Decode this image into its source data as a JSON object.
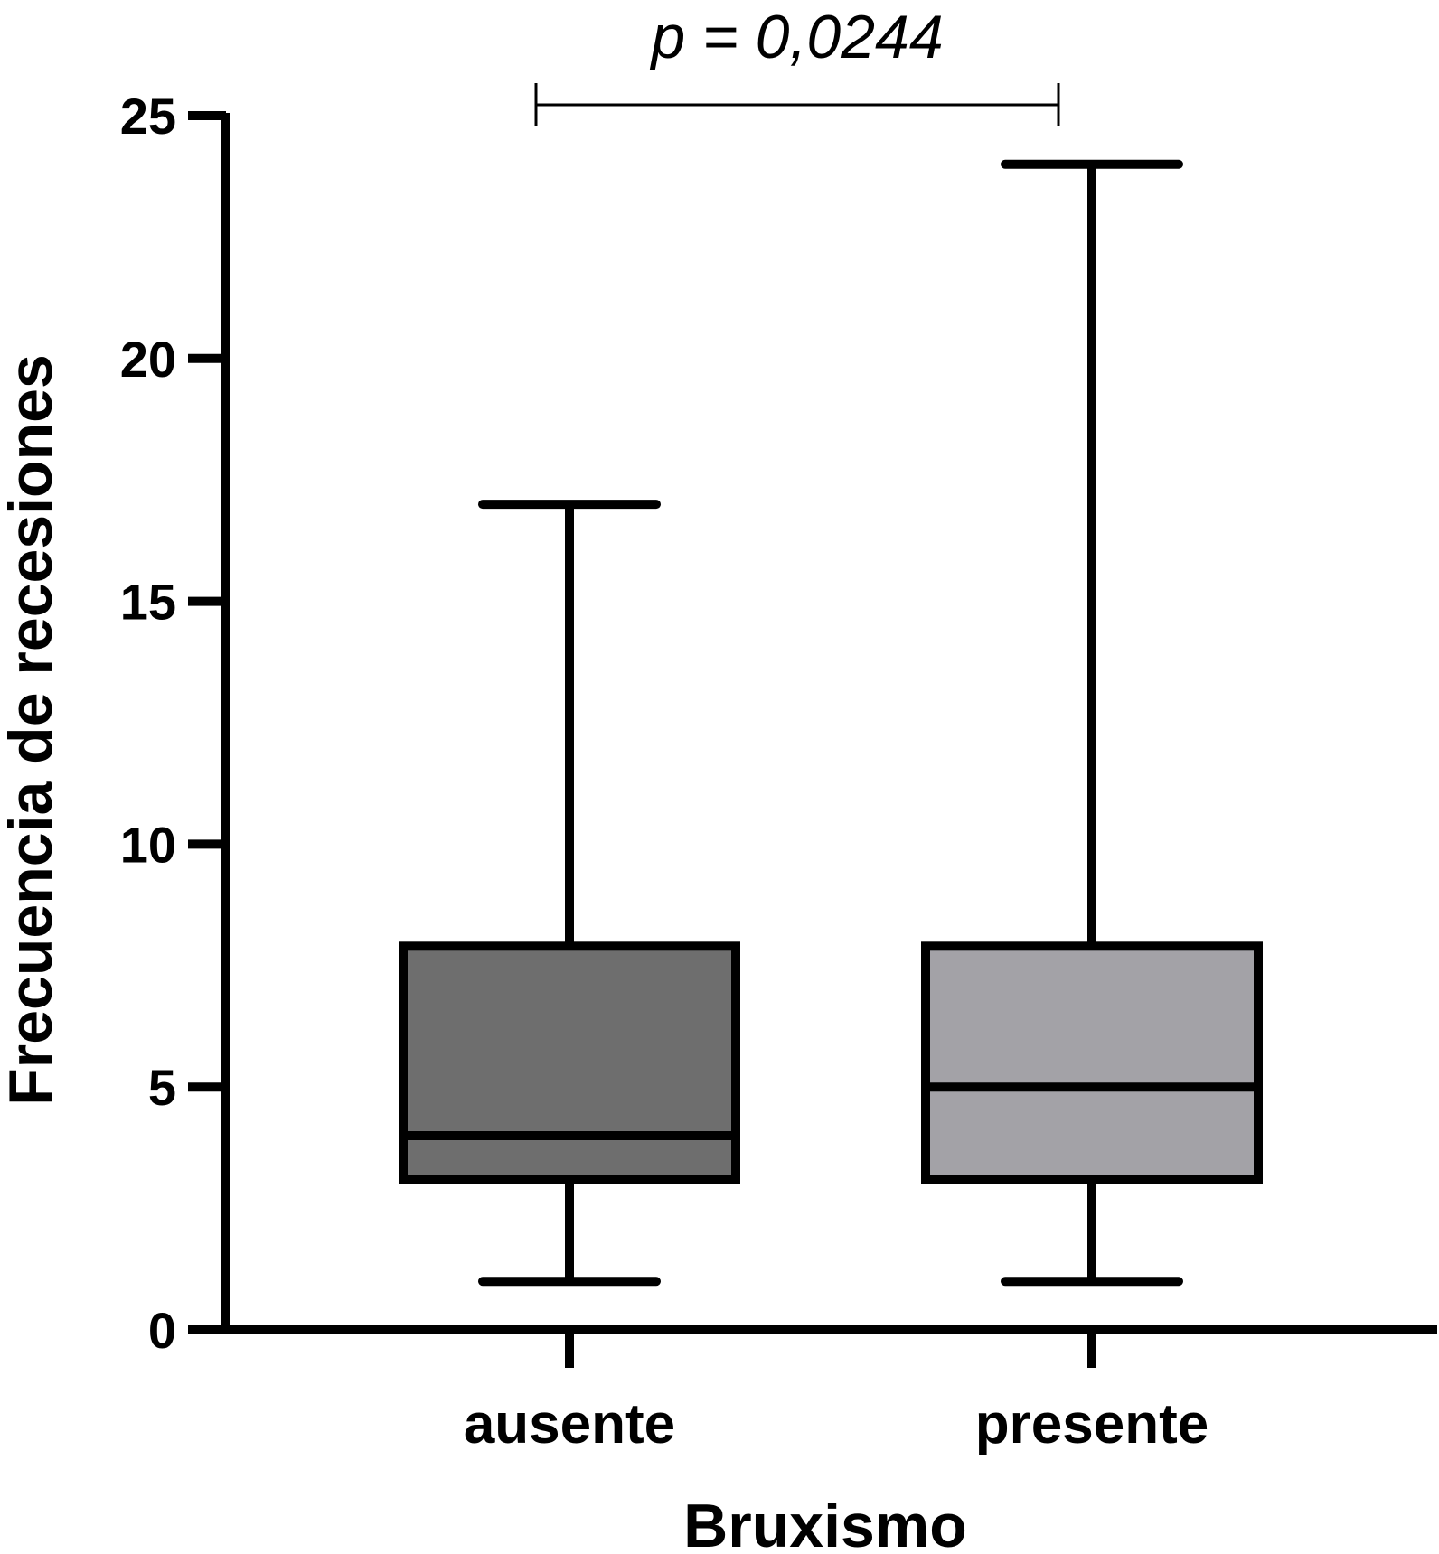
{
  "chart_data": {
    "type": "box",
    "xlabel": "Bruxismo",
    "ylabel": "Frecuencia de recesiones",
    "ylim": [
      0,
      25
    ],
    "yticks": [
      0,
      5,
      10,
      15,
      20,
      25
    ],
    "categories": [
      "ausente",
      "presente"
    ],
    "boxes": [
      {
        "category": "ausente",
        "min": 1,
        "q1": 3.1,
        "median": 4,
        "q3": 7.9,
        "max": 17,
        "color": "#6e6e6e"
      },
      {
        "category": "presente",
        "min": 1,
        "q1": 3.1,
        "median": 5,
        "q3": 7.9,
        "max": 24,
        "color": "#a3a2a7"
      }
    ],
    "annotation": {
      "text": "p = 0,0244",
      "between": [
        "ausente",
        "presente"
      ],
      "y": 25
    },
    "grid": false,
    "legend": "none"
  }
}
